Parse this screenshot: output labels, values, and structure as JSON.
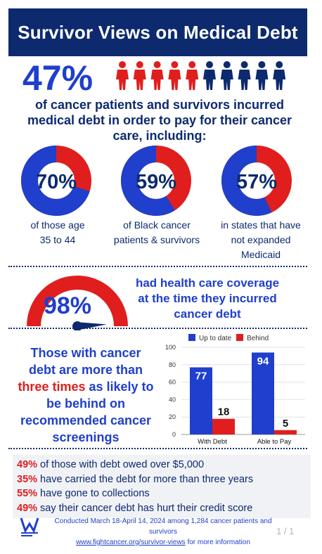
{
  "header": {
    "title": "Survivor Views on Medical Debt"
  },
  "headline": {
    "percent": "47%",
    "text": "of cancer patients and survivors incurred medical debt in order to pay for their cancer care, including:",
    "icon_total": 10,
    "icon_highlighted": 5
  },
  "donuts": [
    {
      "value": 70,
      "label_pct": "70%",
      "line1": "of those age",
      "line2": "35 to 44",
      "line3": ""
    },
    {
      "value": 59,
      "label_pct": "59%",
      "line1": "of  Black cancer",
      "line2": "patients & survivors",
      "line3": ""
    },
    {
      "value": 57,
      "label_pct": "57%",
      "line1": "in states that have",
      "line2": "not expanded",
      "line3": "Medicaid"
    }
  ],
  "coverage": {
    "percent": "98%",
    "value": 98,
    "text": "had health care coverage at the time they incurred cancer debt"
  },
  "screening": {
    "text_before": "Those with cancer debt are more than ",
    "text_highlight": "three times",
    "text_after": " as likely to be behind on recommended cancer screenings"
  },
  "chart_data": {
    "type": "bar",
    "categories": [
      "With Debt",
      "Able to Pay"
    ],
    "series": [
      {
        "name": "Up to date",
        "values": [
          77,
          94
        ],
        "color": "#1f3fcc"
      },
      {
        "name": "Behind",
        "values": [
          18,
          5
        ],
        "color": "#e01e1e"
      }
    ],
    "ylim": [
      0,
      100
    ],
    "yticks": [
      "0",
      "20",
      "40",
      "60",
      "80",
      "100"
    ],
    "legend": "top"
  },
  "stats": [
    {
      "pct": "49%",
      "text": " of those with debt owed over $5,000"
    },
    {
      "pct": "35%",
      "text": " have carried the debt for more than three years"
    },
    {
      "pct": "55%",
      "text": " have gone to collections"
    },
    {
      "pct": "49%",
      "text": " say their cancer debt has hurt their credit score"
    }
  ],
  "footer": {
    "line1": "Conducted March 18-April 14, 2024 among 1,284 cancer patients and survivors",
    "link": "www.fightcancer.org/survivor-views",
    "line2_after": " for more information",
    "page": "1 / 1"
  },
  "colors": {
    "navy": "#0d2a6e",
    "blue": "#1f3fcc",
    "red": "#e01e1e"
  },
  "icons": [
    "person-icon",
    "speedometer-gauge-icon",
    "acs-can-logo-icon"
  ]
}
